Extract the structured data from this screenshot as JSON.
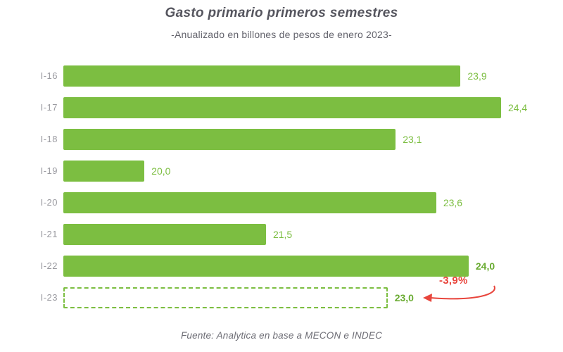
{
  "chart_data": {
    "type": "bar",
    "orientation": "horizontal",
    "title": "Gasto primario primeros semestres",
    "subtitle": "-Anualizado en billones de pesos de enero 2023-",
    "source": "Fuente: Analytica en base a MECON e INDEC",
    "categories": [
      "I-16",
      "I-17",
      "I-18",
      "I-19",
      "I-20",
      "I-21",
      "I-22",
      "I-23"
    ],
    "values": [
      23.9,
      24.4,
      23.1,
      20.0,
      23.6,
      21.5,
      24.0,
      23.0
    ],
    "value_labels": [
      "23,9",
      "24,4",
      "23,1",
      "20,0",
      "23,6",
      "21,5",
      "24,0",
      "23,0"
    ],
    "bold_labels": [
      false,
      false,
      false,
      false,
      false,
      false,
      true,
      true
    ],
    "dashed": [
      false,
      false,
      false,
      false,
      false,
      false,
      false,
      true
    ],
    "xlim": [
      19,
      24.6
    ],
    "grid": false,
    "legend": "none",
    "bar_color": "#7cbe41",
    "value_color": "#7cbe41",
    "bold_value_color": "#69ab31",
    "annotation": {
      "text": "-3,9%",
      "color": "#e8453c",
      "target_category": "I-23"
    }
  }
}
